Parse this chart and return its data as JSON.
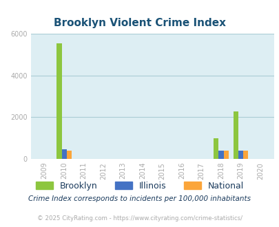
{
  "title": "Brooklyn Violent Crime Index",
  "years": [
    2009,
    2010,
    2011,
    2012,
    2013,
    2014,
    2015,
    2016,
    2017,
    2018,
    2019,
    2020
  ],
  "brooklyn": [
    0,
    5560,
    0,
    0,
    0,
    0,
    0,
    0,
    0,
    1000,
    2280,
    0
  ],
  "illinois": [
    0,
    450,
    0,
    0,
    0,
    0,
    0,
    0,
    0,
    390,
    390,
    0
  ],
  "national": [
    0,
    390,
    0,
    0,
    0,
    0,
    0,
    0,
    0,
    390,
    400,
    0
  ],
  "bar_width": 0.25,
  "ylim": [
    0,
    6000
  ],
  "yticks": [
    0,
    2000,
    4000,
    6000
  ],
  "color_brooklyn": "#8dc63f",
  "color_illinois": "#4472c4",
  "color_national": "#fba53a",
  "bg_color": "#ddeef3",
  "grid_color": "#aaccd5",
  "title_color": "#1a5276",
  "label_color": "#1a3a5c",
  "axis_label_color": "#aaaaaa",
  "footnote1": "Crime Index corresponds to incidents per 100,000 inhabitants",
  "footnote2": "© 2025 CityRating.com - https://www.cityrating.com/crime-statistics/",
  "legend_labels": [
    "Brooklyn",
    "Illinois",
    "National"
  ]
}
